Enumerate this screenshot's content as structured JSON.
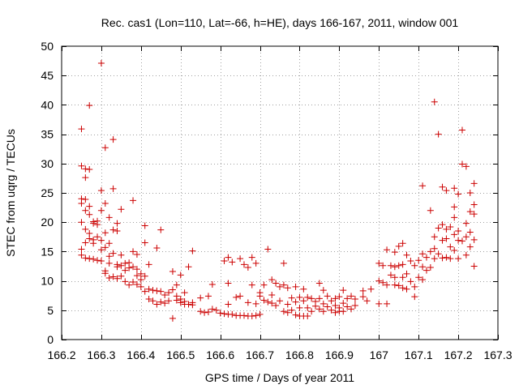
{
  "chart_data": {
    "type": "scatter",
    "title": "Rec. cas1 (Lon=110, Lat=-66, h=HE), days 166-167, 2011, window 001",
    "xlabel": "GPS time / Days of year 2011",
    "ylabel": "STEC from uqrg / TECUs",
    "xlim": [
      166.2,
      167.3
    ],
    "ylim": [
      0,
      50
    ],
    "xticks": [
      166.2,
      166.3,
      166.4,
      166.5,
      166.6,
      166.7,
      166.8,
      166.9,
      167.0,
      167.1,
      167.2,
      167.3
    ],
    "xtick_labels": [
      "166.2",
      "166.3",
      "166.4",
      "166.5",
      "166.6",
      "166.7",
      "166.8",
      "166.9",
      "167",
      "167.1",
      "167.2",
      "167.3"
    ],
    "yticks": [
      0,
      5,
      10,
      15,
      20,
      25,
      30,
      35,
      40,
      45,
      50
    ],
    "ytick_labels": [
      "0",
      "5",
      "10",
      "15",
      "20",
      "25",
      "30",
      "35",
      "40",
      "45",
      "50"
    ],
    "grid": true,
    "marker": "+",
    "color": "#cc0000",
    "series": [
      {
        "points": [
          [
            166.25,
            35.9
          ],
          [
            166.25,
            29.6
          ],
          [
            166.25,
            24.0
          ],
          [
            166.25,
            23.2
          ],
          [
            166.25,
            20.0
          ],
          [
            166.25,
            15.4
          ],
          [
            166.25,
            14.4
          ],
          [
            166.26,
            29.1
          ],
          [
            166.26,
            27.6
          ],
          [
            166.26,
            23.9
          ],
          [
            166.26,
            22.0
          ],
          [
            166.26,
            18.8
          ],
          [
            166.26,
            16.5
          ],
          [
            166.26,
            13.9
          ],
          [
            166.27,
            39.9
          ],
          [
            166.27,
            29.0
          ],
          [
            166.27,
            22.7
          ],
          [
            166.27,
            21.3
          ],
          [
            166.27,
            18.1
          ],
          [
            166.27,
            17.2
          ],
          [
            166.27,
            13.8
          ],
          [
            166.28,
            20.1
          ],
          [
            166.28,
            19.8
          ],
          [
            166.28,
            17.0
          ],
          [
            166.28,
            16.4
          ],
          [
            166.28,
            13.7
          ],
          [
            166.29,
            20.2
          ],
          [
            166.29,
            19.6
          ],
          [
            166.29,
            17.5
          ],
          [
            166.29,
            13.5
          ],
          [
            166.3,
            47.1
          ],
          [
            166.3,
            25.4
          ],
          [
            166.3,
            22.0
          ],
          [
            166.3,
            16.9
          ],
          [
            166.3,
            15.3
          ],
          [
            166.3,
            13.4
          ],
          [
            166.31,
            32.7
          ],
          [
            166.31,
            23.2
          ],
          [
            166.31,
            18.2
          ],
          [
            166.31,
            15.7
          ],
          [
            166.31,
            11.7
          ],
          [
            166.31,
            11.3
          ],
          [
            166.32,
            20.8
          ],
          [
            166.32,
            16.4
          ],
          [
            166.32,
            14.2
          ],
          [
            166.32,
            13.0
          ],
          [
            166.32,
            10.5
          ],
          [
            166.33,
            34.1
          ],
          [
            166.33,
            25.7
          ],
          [
            166.33,
            18.7
          ],
          [
            166.33,
            14.7
          ],
          [
            166.33,
            10.7
          ],
          [
            166.34,
            19.8
          ],
          [
            166.34,
            18.5
          ],
          [
            166.34,
            12.8
          ],
          [
            166.34,
            12.4
          ],
          [
            166.34,
            10.4
          ],
          [
            166.35,
            22.2
          ],
          [
            166.35,
            14.4
          ],
          [
            166.35,
            12.6
          ],
          [
            166.35,
            10.8
          ],
          [
            166.36,
            13.0
          ],
          [
            166.36,
            11.8
          ],
          [
            166.36,
            9.9
          ],
          [
            166.37,
            13.1
          ],
          [
            166.37,
            12.2
          ],
          [
            166.37,
            9.3
          ],
          [
            166.38,
            23.7
          ],
          [
            166.38,
            15.0
          ],
          [
            166.38,
            12.4
          ],
          [
            166.38,
            9.8
          ],
          [
            166.39,
            14.5
          ],
          [
            166.39,
            12.0
          ],
          [
            166.39,
            10.9
          ],
          [
            166.39,
            9.4
          ],
          [
            166.4,
            11.2
          ],
          [
            166.4,
            10.2
          ],
          [
            166.4,
            9.0
          ],
          [
            166.41,
            19.4
          ],
          [
            166.41,
            16.5
          ],
          [
            166.41,
            10.8
          ],
          [
            166.41,
            8.2
          ],
          [
            166.42,
            12.8
          ],
          [
            166.42,
            8.6
          ],
          [
            166.42,
            6.9
          ],
          [
            166.43,
            8.4
          ],
          [
            166.43,
            6.6
          ],
          [
            166.44,
            15.6
          ],
          [
            166.44,
            8.3
          ],
          [
            166.44,
            6.0
          ],
          [
            166.45,
            18.7
          ],
          [
            166.45,
            8.2
          ],
          [
            166.45,
            6.4
          ],
          [
            166.46,
            7.6
          ],
          [
            166.46,
            6.2
          ],
          [
            166.47,
            8.0
          ],
          [
            166.47,
            6.6
          ],
          [
            166.48,
            11.6
          ],
          [
            166.48,
            8.5
          ],
          [
            166.48,
            3.6
          ],
          [
            166.49,
            9.3
          ],
          [
            166.49,
            7.4
          ],
          [
            166.49,
            6.7
          ],
          [
            166.5,
            11.0
          ],
          [
            166.5,
            6.9
          ],
          [
            166.5,
            6.3
          ],
          [
            166.51,
            8.0
          ],
          [
            166.51,
            6.5
          ],
          [
            166.51,
            6.0
          ],
          [
            166.52,
            12.4
          ],
          [
            166.52,
            6.0
          ],
          [
            166.53,
            15.1
          ],
          [
            166.53,
            6.3
          ],
          [
            166.53,
            5.9
          ],
          [
            166.55,
            7.1
          ],
          [
            166.55,
            4.8
          ],
          [
            166.56,
            4.6
          ],
          [
            166.57,
            7.4
          ],
          [
            166.57,
            4.7
          ],
          [
            166.58,
            9.4
          ],
          [
            166.58,
            5.2
          ],
          [
            166.59,
            5.0
          ],
          [
            166.6,
            4.5
          ],
          [
            166.61,
            13.4
          ],
          [
            166.61,
            4.4
          ],
          [
            166.62,
            14.0
          ],
          [
            166.62,
            9.6
          ],
          [
            166.62,
            6.0
          ],
          [
            166.62,
            4.3
          ],
          [
            166.63,
            13.2
          ],
          [
            166.63,
            4.3
          ],
          [
            166.64,
            7.2
          ],
          [
            166.64,
            4.1
          ],
          [
            166.65,
            13.8
          ],
          [
            166.65,
            7.4
          ],
          [
            166.65,
            4.1
          ],
          [
            166.66,
            12.8
          ],
          [
            166.66,
            4.1
          ],
          [
            166.67,
            12.3
          ],
          [
            166.67,
            6.3
          ],
          [
            166.67,
            4.0
          ],
          [
            166.68,
            14.0
          ],
          [
            166.68,
            9.3
          ],
          [
            166.68,
            4.0
          ],
          [
            166.69,
            13.0
          ],
          [
            166.69,
            6.1
          ],
          [
            166.69,
            4.1
          ],
          [
            166.7,
            8.0
          ],
          [
            166.7,
            7.4
          ],
          [
            166.7,
            4.3
          ],
          [
            166.71,
            9.3
          ],
          [
            166.71,
            6.7
          ],
          [
            166.72,
            15.4
          ],
          [
            166.72,
            6.4
          ],
          [
            166.73,
            10.2
          ],
          [
            166.73,
            7.6
          ],
          [
            166.73,
            6.2
          ],
          [
            166.74,
            9.6
          ],
          [
            166.74,
            5.8
          ],
          [
            166.75,
            9.0
          ],
          [
            166.75,
            6.6
          ],
          [
            166.76,
            13.0
          ],
          [
            166.76,
            9.3
          ],
          [
            166.76,
            4.8
          ],
          [
            166.77,
            8.8
          ],
          [
            166.77,
            6.0
          ],
          [
            166.77,
            4.6
          ],
          [
            166.78,
            7.1
          ],
          [
            166.78,
            5.0
          ],
          [
            166.79,
            9.0
          ],
          [
            166.79,
            6.4
          ],
          [
            166.79,
            4.2
          ],
          [
            166.8,
            7.2
          ],
          [
            166.8,
            5.4
          ],
          [
            166.8,
            4.0
          ],
          [
            166.81,
            8.6
          ],
          [
            166.81,
            6.6
          ],
          [
            166.81,
            4.0
          ],
          [
            166.82,
            7.2
          ],
          [
            166.82,
            5.4
          ],
          [
            166.82,
            4.0
          ],
          [
            166.83,
            7.0
          ],
          [
            166.83,
            4.8
          ],
          [
            166.84,
            6.5
          ],
          [
            166.84,
            5.7
          ],
          [
            166.85,
            9.6
          ],
          [
            166.85,
            7.0
          ],
          [
            166.85,
            5.2
          ],
          [
            166.86,
            8.4
          ],
          [
            166.86,
            6.1
          ],
          [
            166.86,
            4.8
          ],
          [
            166.87,
            7.4
          ],
          [
            166.87,
            5.6
          ],
          [
            166.88,
            6.6
          ],
          [
            166.88,
            5.0
          ],
          [
            166.89,
            7.0
          ],
          [
            166.89,
            5.8
          ],
          [
            166.89,
            4.6
          ],
          [
            166.9,
            7.3
          ],
          [
            166.9,
            5.4
          ],
          [
            166.9,
            4.8
          ],
          [
            166.91,
            8.4
          ],
          [
            166.91,
            6.2
          ],
          [
            166.91,
            4.8
          ],
          [
            166.92,
            7.0
          ],
          [
            166.92,
            5.6
          ],
          [
            166.93,
            7.4
          ],
          [
            166.93,
            5.2
          ],
          [
            166.94,
            6.9
          ],
          [
            166.94,
            5.8
          ],
          [
            166.96,
            8.3
          ],
          [
            166.96,
            7.3
          ],
          [
            166.97,
            6.6
          ],
          [
            166.98,
            8.6
          ],
          [
            167.0,
            13.0
          ],
          [
            167.0,
            10.0
          ],
          [
            167.0,
            6.1
          ],
          [
            167.01,
            12.6
          ],
          [
            167.01,
            9.7
          ],
          [
            167.02,
            15.3
          ],
          [
            167.02,
            9.3
          ],
          [
            167.02,
            6.1
          ],
          [
            167.03,
            12.6
          ],
          [
            167.03,
            11.0
          ],
          [
            167.04,
            14.9
          ],
          [
            167.04,
            12.4
          ],
          [
            167.04,
            10.6
          ],
          [
            167.04,
            9.3
          ],
          [
            167.05,
            15.9
          ],
          [
            167.05,
            12.6
          ],
          [
            167.05,
            9.2
          ],
          [
            167.06,
            16.4
          ],
          [
            167.06,
            12.8
          ],
          [
            167.06,
            10.6
          ],
          [
            167.06,
            8.8
          ],
          [
            167.07,
            14.4
          ],
          [
            167.07,
            11.2
          ],
          [
            167.07,
            8.6
          ],
          [
            167.08,
            13.4
          ],
          [
            167.08,
            9.9
          ],
          [
            167.09,
            12.6
          ],
          [
            167.09,
            9.0
          ],
          [
            167.09,
            7.3
          ],
          [
            167.1,
            13.5
          ],
          [
            167.1,
            10.6
          ],
          [
            167.11,
            26.2
          ],
          [
            167.11,
            14.6
          ],
          [
            167.11,
            12.4
          ],
          [
            167.11,
            10.2
          ],
          [
            167.12,
            14.0
          ],
          [
            167.12,
            11.8
          ],
          [
            167.13,
            22.0
          ],
          [
            167.13,
            15.0
          ],
          [
            167.13,
            12.3
          ],
          [
            167.14,
            40.5
          ],
          [
            167.14,
            17.5
          ],
          [
            167.14,
            15.5
          ],
          [
            167.14,
            13.8
          ],
          [
            167.15,
            35.0
          ],
          [
            167.15,
            19.0
          ],
          [
            167.15,
            14.6
          ],
          [
            167.16,
            26.0
          ],
          [
            167.16,
            19.6
          ],
          [
            167.16,
            16.9
          ],
          [
            167.16,
            13.9
          ],
          [
            167.17,
            25.4
          ],
          [
            167.17,
            18.8
          ],
          [
            167.17,
            17.2
          ],
          [
            167.17,
            14.0
          ],
          [
            167.18,
            19.2
          ],
          [
            167.18,
            15.8
          ],
          [
            167.18,
            13.8
          ],
          [
            167.19,
            25.8
          ],
          [
            167.19,
            22.6
          ],
          [
            167.19,
            20.8
          ],
          [
            167.19,
            17.9
          ],
          [
            167.19,
            15.2
          ],
          [
            167.2,
            24.8
          ],
          [
            167.2,
            18.5
          ],
          [
            167.2,
            16.9
          ],
          [
            167.2,
            13.8
          ],
          [
            167.21,
            35.7
          ],
          [
            167.21,
            29.9
          ],
          [
            167.21,
            16.8
          ],
          [
            167.22,
            29.5
          ],
          [
            167.22,
            19.8
          ],
          [
            167.22,
            17.5
          ],
          [
            167.22,
            14.4
          ],
          [
            167.23,
            25.0
          ],
          [
            167.23,
            21.8
          ],
          [
            167.23,
            18.3
          ],
          [
            167.23,
            15.8
          ],
          [
            167.24,
            26.6
          ],
          [
            167.24,
            23.0
          ],
          [
            167.24,
            21.4
          ],
          [
            167.24,
            17.0
          ],
          [
            167.24,
            12.5
          ]
        ]
      }
    ]
  }
}
